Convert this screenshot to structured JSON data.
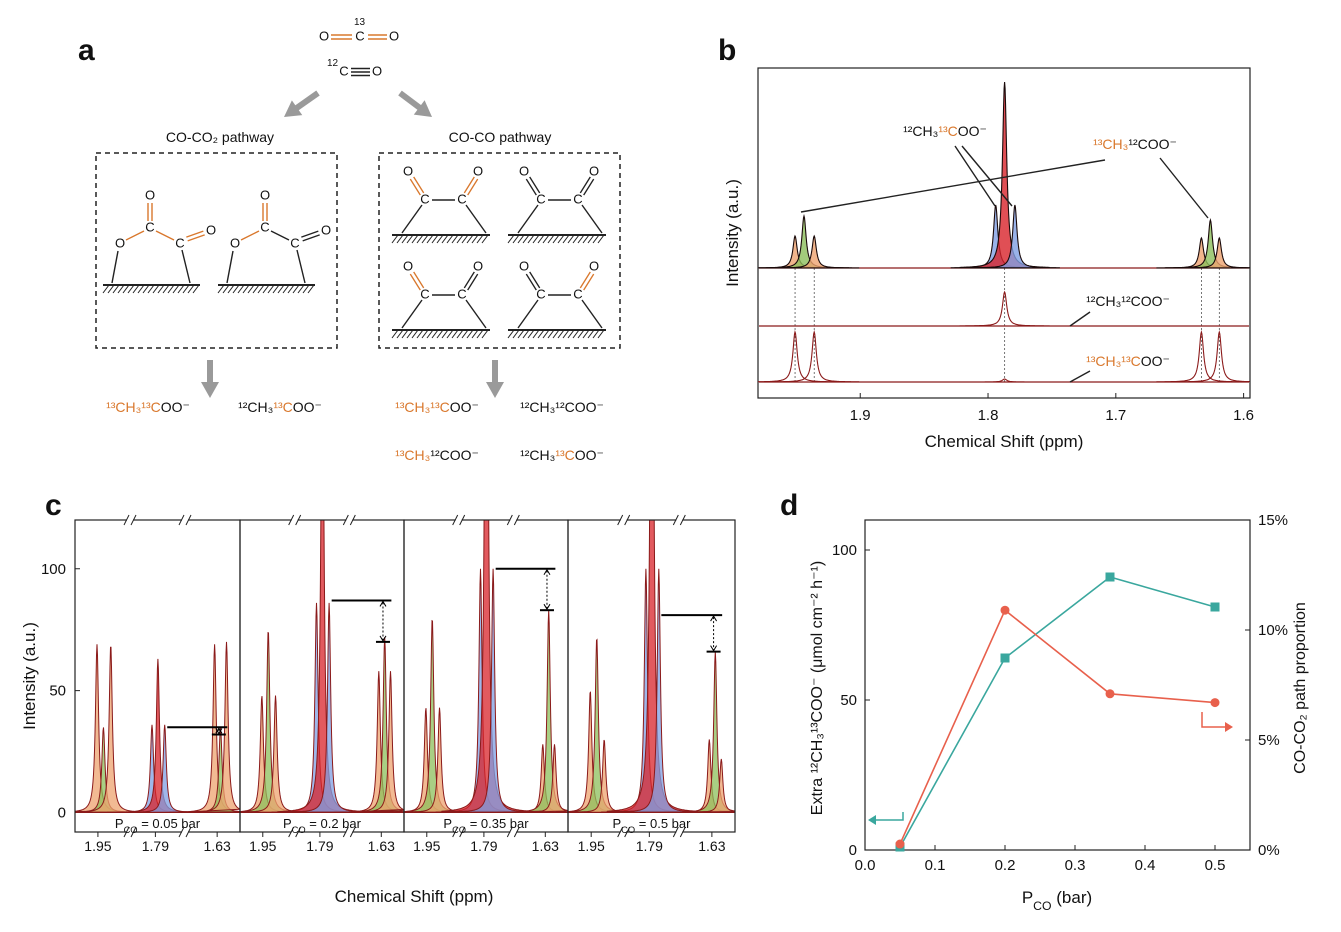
{
  "panel_labels": [
    "a",
    "b",
    "c",
    "d"
  ],
  "diagram": {
    "atom_labels": {
      "O": "O",
      "C": "C"
    },
    "co2_isotope": "13",
    "co_isotope": "12",
    "pathways": [
      {
        "title": "CO-CO₂ pathway",
        "products": [
          [
            {
              "t": "¹³CH₃¹³C",
              "c": "#d9782d"
            },
            {
              "t": "OO⁻",
              "c": "#111111"
            }
          ],
          [
            {
              "t": "¹²CH₃",
              "c": "#111111"
            },
            {
              "t": "¹³C",
              "c": "#d9782d"
            },
            {
              "t": "OO⁻",
              "c": "#111111"
            }
          ]
        ]
      },
      {
        "title": "CO-CO pathway",
        "products": [
          [
            {
              "t": "¹³CH₃¹³C",
              "c": "#d9782d"
            },
            {
              "t": "OO⁻",
              "c": "#111111"
            }
          ],
          [
            {
              "t": "¹²CH₃¹²COO⁻",
              "c": "#111111"
            }
          ],
          [
            {
              "t": "¹³CH₃",
              "c": "#d9782d"
            },
            {
              "t": "¹²COO⁻",
              "c": "#111111"
            }
          ],
          [
            {
              "t": "¹²CH₃",
              "c": "#111111"
            },
            {
              "t": "¹³C",
              "c": "#d9782d"
            },
            {
              "t": "OO⁻",
              "c": "#111111"
            }
          ]
        ]
      }
    ]
  },
  "chart_data": [
    {
      "type": "spectrum",
      "xlabel": "Chemical Shift (ppm)",
      "ylabel": "Intensity (a.u.)",
      "xlim": [
        1.98,
        1.595
      ],
      "xticks": [
        1.9,
        1.8,
        1.7,
        1.6
      ],
      "line_color": "#8b1a1a",
      "traces": [
        {
          "peaks": [
            {
              "ppm": 1.951,
              "height": 32,
              "color": "#eda36f"
            },
            {
              "ppm": 1.944,
              "height": 52,
              "color": "#8cbf5b"
            },
            {
              "ppm": 1.936,
              "height": 32,
              "color": "#eda36f"
            },
            {
              "ppm": 1.794,
              "height": 63,
              "color": "#7f9fe3"
            },
            {
              "ppm": 1.787,
              "height": 186,
              "color": "#d8232a"
            },
            {
              "ppm": 1.779,
              "height": 63,
              "color": "#7f9fe3"
            },
            {
              "ppm": 1.633,
              "height": 30,
              "color": "#eda36f"
            },
            {
              "ppm": 1.626,
              "height": 48,
              "color": "#8cbf5b"
            },
            {
              "ppm": 1.619,
              "height": 30,
              "color": "#eda36f"
            }
          ]
        },
        {
          "peaks": [
            {
              "ppm": 1.787,
              "height": 34
            }
          ]
        },
        {
          "peaks": [
            {
              "ppm": 1.951,
              "height": 50
            },
            {
              "ppm": 1.936,
              "height": 50
            },
            {
              "ppm": 1.787,
              "height": 3
            },
            {
              "ppm": 1.633,
              "height": 50
            },
            {
              "ppm": 1.619,
              "height": 50
            }
          ]
        }
      ],
      "annotations": [
        [
          {
            "t": "¹²CH₃",
            "c": "#111111"
          },
          {
            "t": "¹³C",
            "c": "#d9782d"
          },
          {
            "t": "OO⁻",
            "c": "#111111"
          }
        ],
        [
          {
            "t": "¹³CH₃",
            "c": "#d9782d"
          },
          {
            "t": "¹²COO⁻",
            "c": "#111111"
          }
        ],
        [
          {
            "t": "¹²CH₃¹²COO⁻",
            "c": "#111111"
          }
        ],
        [
          {
            "t": "¹³CH₃¹³C",
            "c": "#d9782d"
          },
          {
            "t": "OO⁻",
            "c": "#111111"
          }
        ]
      ]
    },
    {
      "type": "spectrum",
      "xlabel": "Chemical Shift (ppm)",
      "ylabel": "Intensity (a.u.)",
      "ylim": [
        -8,
        120
      ],
      "yticks": [
        0,
        50,
        100
      ],
      "xsegments": [
        [
          1.975,
          1.915
        ],
        [
          1.82,
          1.755
        ],
        [
          1.668,
          1.603
        ]
      ],
      "xticks": [
        1.95,
        1.79,
        1.63
      ],
      "line_color": "#8b1a1a",
      "panels": [
        {
          "label": [
            {
              "t": "P"
            },
            {
              "t": "CO",
              "sub": true
            },
            {
              "t": " = 0.05 bar"
            }
          ],
          "levels": [
            35,
            32
          ],
          "peaks": [
            {
              "ppm": 1.951,
              "height": 69,
              "color": "#eda36f"
            },
            {
              "ppm": 1.944,
              "height": 35,
              "color": "#8cbf5b"
            },
            {
              "ppm": 1.936,
              "height": 69,
              "color": "#eda36f"
            },
            {
              "ppm": 1.794,
              "height": 36,
              "color": "#7f9fe3"
            },
            {
              "ppm": 1.787,
              "height": 63,
              "color": "#d8232a"
            },
            {
              "ppm": 1.779,
              "height": 36,
              "color": "#7f9fe3"
            },
            {
              "ppm": 1.633,
              "height": 69,
              "color": "#eda36f"
            },
            {
              "ppm": 1.626,
              "height": 35,
              "color": "#8cbf5b"
            },
            {
              "ppm": 1.619,
              "height": 70,
              "color": "#eda36f"
            }
          ]
        },
        {
          "label": [
            {
              "t": "P"
            },
            {
              "t": "CO",
              "sub": true
            },
            {
              "t": " = 0.2 bar"
            }
          ],
          "levels": [
            87,
            70
          ],
          "peaks": [
            {
              "ppm": 1.951,
              "height": 48,
              "color": "#eda36f"
            },
            {
              "ppm": 1.944,
              "height": 75,
              "color": "#8cbf5b"
            },
            {
              "ppm": 1.936,
              "height": 48,
              "color": "#eda36f"
            },
            {
              "ppm": 1.794,
              "height": 86,
              "color": "#7f9fe3"
            },
            {
              "ppm": 1.787,
              "height": 200,
              "color": "#d8232a"
            },
            {
              "ppm": 1.779,
              "height": 86,
              "color": "#7f9fe3"
            },
            {
              "ppm": 1.633,
              "height": 58,
              "color": "#eda36f"
            },
            {
              "ppm": 1.626,
              "height": 72,
              "color": "#8cbf5b"
            },
            {
              "ppm": 1.619,
              "height": 58,
              "color": "#eda36f"
            }
          ]
        },
        {
          "label": [
            {
              "t": "P"
            },
            {
              "t": "CO",
              "sub": true
            },
            {
              "t": " = 0.35 bar"
            }
          ],
          "levels": [
            100,
            83
          ],
          "peaks": [
            {
              "ppm": 1.951,
              "height": 43,
              "color": "#eda36f"
            },
            {
              "ppm": 1.944,
              "height": 80,
              "color": "#8cbf5b"
            },
            {
              "ppm": 1.936,
              "height": 43,
              "color": "#eda36f"
            },
            {
              "ppm": 1.794,
              "height": 100,
              "color": "#7f9fe3"
            },
            {
              "ppm": 1.787,
              "height": 300,
              "color": "#d8232a"
            },
            {
              "ppm": 1.779,
              "height": 100,
              "color": "#7f9fe3"
            },
            {
              "ppm": 1.633,
              "height": 28,
              "color": "#eda36f"
            },
            {
              "ppm": 1.626,
              "height": 83,
              "color": "#8cbf5b"
            },
            {
              "ppm": 1.619,
              "height": 28,
              "color": "#eda36f"
            }
          ]
        },
        {
          "label": [
            {
              "t": "P"
            },
            {
              "t": "CO",
              "sub": true
            },
            {
              "t": " = 0.5 bar"
            }
          ],
          "levels": [
            81,
            66
          ],
          "peaks": [
            {
              "ppm": 1.951,
              "height": 50,
              "color": "#eda36f"
            },
            {
              "ppm": 1.944,
              "height": 72,
              "color": "#8cbf5b"
            },
            {
              "ppm": 1.936,
              "height": 30,
              "color": "#eda36f"
            },
            {
              "ppm": 1.794,
              "height": 100,
              "color": "#7f9fe3"
            },
            {
              "ppm": 1.787,
              "height": 300,
              "color": "#d8232a"
            },
            {
              "ppm": 1.779,
              "height": 100,
              "color": "#7f9fe3"
            },
            {
              "ppm": 1.633,
              "height": 30,
              "color": "#eda36f"
            },
            {
              "ppm": 1.626,
              "height": 66,
              "color": "#8cbf5b"
            },
            {
              "ppm": 1.619,
              "height": 22,
              "color": "#eda36f"
            }
          ]
        }
      ]
    },
    {
      "type": "line",
      "xlabel": [
        {
          "t": "P"
        },
        {
          "t": "CO",
          "sub": true
        },
        {
          "t": " (bar)"
        }
      ],
      "ylabel": "Extra ¹²CH₃¹³COO⁻ (μmol cm⁻² h⁻¹)",
      "y2label": "CO-CO₂ path proportion",
      "x": [
        0.05,
        0.2,
        0.35,
        0.5
      ],
      "xlim": [
        0,
        0.55
      ],
      "xticks": [
        {
          "value": 0,
          "label": "0.0"
        },
        0.1,
        0.2,
        0.3,
        0.4,
        0.5
      ],
      "ylim": [
        0,
        110
      ],
      "yticks": [
        0,
        50,
        100
      ],
      "y2lim": [
        0,
        15
      ],
      "y2ticks": [
        {
          "value": 0,
          "label": "0%"
        },
        {
          "value": 5,
          "label": "5%"
        },
        {
          "value": 10,
          "label": "10%"
        },
        {
          "value": 15,
          "label": "15%"
        }
      ],
      "series": [
        {
          "color": "#3aa79e",
          "marker": "square",
          "values": [
            1,
            64,
            91,
            81
          ]
        },
        {
          "color": "#e8604c",
          "marker": "circle",
          "axis": "y2",
          "values": [
            0.27,
            10.9,
            7.1,
            6.7
          ]
        }
      ]
    }
  ]
}
